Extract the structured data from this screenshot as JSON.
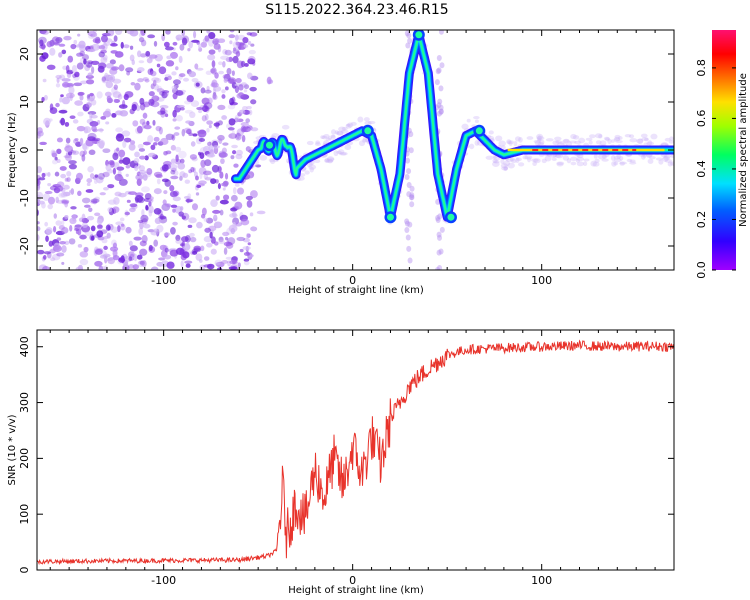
{
  "title": "S115.2022.364.23.46.R15",
  "chart_data": [
    {
      "type": "heatmap",
      "xlabel": "Height of straight line (km)",
      "ylabel": "Frequency (Hz)",
      "xlim": [
        -167,
        170
      ],
      "ylim": [
        -25,
        25
      ],
      "x_ticks": [
        -100,
        0,
        100
      ],
      "y_ticks": [
        -20,
        -10,
        0,
        10,
        20
      ],
      "colorbar": {
        "label": "Normalized spectral amplitude",
        "range": [
          0.0,
          0.95
        ],
        "ticks": [
          0.0,
          0.2,
          0.4,
          0.6,
          0.8
        ]
      },
      "ridge": {
        "description": "dominant frequency ridge",
        "x": [
          -60,
          -55,
          -50,
          -45,
          -40,
          -35,
          -30,
          -25,
          -20,
          -15,
          -10,
          -5,
          0,
          5,
          10,
          15,
          20,
          25,
          30,
          35,
          40,
          45,
          50,
          55,
          60,
          65,
          70,
          75,
          80,
          90,
          100,
          120,
          140,
          160,
          170
        ],
        "y": [
          -6,
          -3,
          0,
          1,
          0,
          2,
          -4,
          -2,
          -1,
          0,
          1,
          2,
          3,
          4,
          3,
          -4,
          -14,
          -5,
          16,
          24,
          16,
          -5,
          -14,
          -4,
          3,
          4,
          2,
          0,
          -1,
          0,
          0,
          0,
          0,
          0,
          0
        ]
      }
    },
    {
      "type": "line",
      "xlabel": "Height of straight line (km)",
      "ylabel": "SNR (10 * v/v)",
      "xlim": [
        -167,
        170
      ],
      "ylim": [
        0,
        430
      ],
      "x_ticks": [
        -100,
        0,
        100
      ],
      "y_ticks": [
        0,
        100,
        200,
        300,
        400
      ],
      "color": "#e8332b",
      "series": [
        {
          "x": [
            -167,
            -140,
            -100,
            -60,
            -45,
            -40,
            -37,
            -35,
            -30,
            -25,
            -20,
            -15,
            -10,
            -5,
            0,
            5,
            10,
            15,
            20,
            30,
            40,
            50,
            60,
            80,
            100,
            120,
            140,
            160,
            170
          ],
          "values": [
            15,
            16,
            17,
            18,
            25,
            35,
            150,
            60,
            120,
            90,
            180,
            130,
            200,
            150,
            220,
            170,
            240,
            190,
            270,
            330,
            360,
            385,
            395,
            398,
            400,
            402,
            400,
            401,
            400
          ]
        }
      ]
    }
  ]
}
